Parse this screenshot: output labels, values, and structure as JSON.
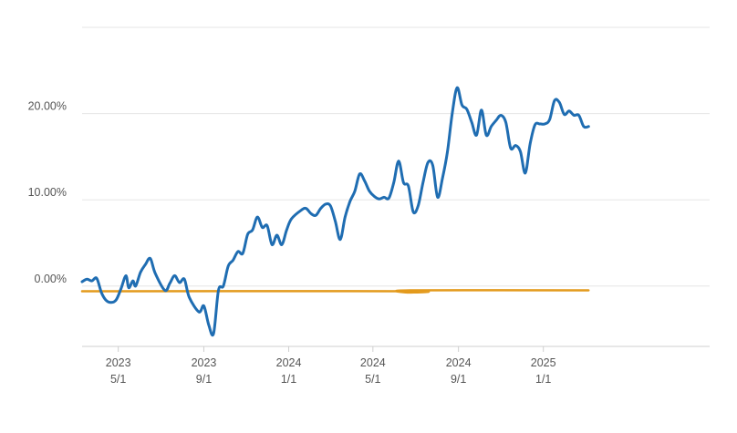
{
  "chart_data": {
    "type": "line",
    "title": "",
    "xlabel": "",
    "ylabel": "",
    "ylim": [
      -7,
      30
    ],
    "grid": true,
    "legend": "none",
    "x_range": [
      "2023-03-10",
      "2025-08-28"
    ],
    "y_ticks": [
      {
        "value": 0,
        "label": "0.00%"
      },
      {
        "value": 10,
        "label": "10.00%"
      },
      {
        "value": 20,
        "label": "20.00%"
      }
    ],
    "x_ticks": [
      {
        "date": "2023-05-01",
        "year": "2023",
        "label": "5/1"
      },
      {
        "date": "2023-09-01",
        "year": "2023",
        "label": "9/1"
      },
      {
        "date": "2024-01-01",
        "year": "2024",
        "label": "1/1"
      },
      {
        "date": "2024-05-01",
        "year": "2024",
        "label": "5/1"
      },
      {
        "date": "2024-09-01",
        "year": "2024",
        "label": "9/1"
      },
      {
        "date": "2025-01-01",
        "year": "2025",
        "label": "1/1"
      }
    ],
    "series": [
      {
        "color": "#1f6db2",
        "points": [
          [
            "2023-03-10",
            0.5
          ],
          [
            "2023-03-17",
            0.8
          ],
          [
            "2023-03-24",
            0.6
          ],
          [
            "2023-03-31",
            0.9
          ],
          [
            "2023-04-07",
            -0.8
          ],
          [
            "2023-04-14",
            -1.7
          ],
          [
            "2023-04-21",
            -1.9
          ],
          [
            "2023-04-28",
            -1.6
          ],
          [
            "2023-05-05",
            -0.3
          ],
          [
            "2023-05-12",
            1.2
          ],
          [
            "2023-05-16",
            -0.2
          ],
          [
            "2023-05-22",
            0.6
          ],
          [
            "2023-05-26",
            0.0
          ],
          [
            "2023-06-02",
            1.6
          ],
          [
            "2023-06-09",
            2.5
          ],
          [
            "2023-06-16",
            3.2
          ],
          [
            "2023-06-23",
            1.5
          ],
          [
            "2023-07-07",
            -0.5
          ],
          [
            "2023-07-14",
            0.3
          ],
          [
            "2023-07-21",
            1.2
          ],
          [
            "2023-07-28",
            0.4
          ],
          [
            "2023-08-04",
            0.8
          ],
          [
            "2023-08-11",
            -1.3
          ],
          [
            "2023-08-25",
            -3.0
          ],
          [
            "2023-09-01",
            -2.3
          ],
          [
            "2023-09-08",
            -4.5
          ],
          [
            "2023-09-15",
            -5.5
          ],
          [
            "2023-09-22",
            -0.5
          ],
          [
            "2023-09-29",
            0.0
          ],
          [
            "2023-10-06",
            2.3
          ],
          [
            "2023-10-13",
            3.0
          ],
          [
            "2023-10-20",
            4.0
          ],
          [
            "2023-10-27",
            3.8
          ],
          [
            "2023-11-03",
            6.0
          ],
          [
            "2023-11-10",
            6.5
          ],
          [
            "2023-11-17",
            8.0
          ],
          [
            "2023-11-24",
            6.8
          ],
          [
            "2023-12-01",
            7.0
          ],
          [
            "2023-12-08",
            4.8
          ],
          [
            "2023-12-15",
            5.9
          ],
          [
            "2023-12-22",
            4.8
          ],
          [
            "2023-12-29",
            6.5
          ],
          [
            "2024-01-05",
            7.8
          ],
          [
            "2024-01-19",
            8.8
          ],
          [
            "2024-01-26",
            9.0
          ],
          [
            "2024-02-02",
            8.4
          ],
          [
            "2024-02-09",
            8.2
          ],
          [
            "2024-02-16",
            9.0
          ],
          [
            "2024-02-23",
            9.5
          ],
          [
            "2024-03-01",
            9.3
          ],
          [
            "2024-03-08",
            7.5
          ],
          [
            "2024-03-15",
            5.4
          ],
          [
            "2024-03-22",
            8.0
          ],
          [
            "2024-03-29",
            9.8
          ],
          [
            "2024-04-05",
            11.0
          ],
          [
            "2024-04-12",
            13.0
          ],
          [
            "2024-04-19",
            12.2
          ],
          [
            "2024-04-26",
            11.0
          ],
          [
            "2024-05-03",
            10.4
          ],
          [
            "2024-05-10",
            10.1
          ],
          [
            "2024-05-17",
            10.3
          ],
          [
            "2024-05-24",
            10.2
          ],
          [
            "2024-05-31",
            12.0
          ],
          [
            "2024-06-07",
            14.5
          ],
          [
            "2024-06-14",
            12.0
          ],
          [
            "2024-06-21",
            11.6
          ],
          [
            "2024-06-28",
            8.6
          ],
          [
            "2024-07-05",
            9.3
          ],
          [
            "2024-07-12",
            12.0
          ],
          [
            "2024-07-19",
            14.3
          ],
          [
            "2024-07-26",
            14.0
          ],
          [
            "2024-08-02",
            10.3
          ],
          [
            "2024-08-09",
            12.5
          ],
          [
            "2024-08-16",
            15.5
          ],
          [
            "2024-08-23",
            20.0
          ],
          [
            "2024-08-30",
            23.0
          ],
          [
            "2024-09-06",
            21.0
          ],
          [
            "2024-09-13",
            20.5
          ],
          [
            "2024-09-20",
            19.0
          ],
          [
            "2024-09-27",
            17.5
          ],
          [
            "2024-10-04",
            20.4
          ],
          [
            "2024-10-11",
            17.5
          ],
          [
            "2024-10-18",
            18.5
          ],
          [
            "2024-10-25",
            19.2
          ],
          [
            "2024-11-01",
            19.8
          ],
          [
            "2024-11-08",
            19.0
          ],
          [
            "2024-11-15",
            16.0
          ],
          [
            "2024-11-22",
            16.3
          ],
          [
            "2024-11-29",
            15.6
          ],
          [
            "2024-12-06",
            13.1
          ],
          [
            "2024-12-13",
            16.5
          ],
          [
            "2024-12-20",
            18.7
          ],
          [
            "2024-12-27",
            18.8
          ],
          [
            "2025-01-03",
            18.8
          ],
          [
            "2025-01-10",
            19.3
          ],
          [
            "2025-01-17",
            21.5
          ],
          [
            "2025-01-24",
            21.3
          ],
          [
            "2025-01-31",
            19.9
          ],
          [
            "2025-02-07",
            20.3
          ],
          [
            "2025-02-14",
            19.8
          ],
          [
            "2025-02-21",
            19.8
          ],
          [
            "2025-02-28",
            18.5
          ],
          [
            "2025-03-07",
            18.5
          ]
        ]
      },
      {
        "color": "#e39a1c",
        "points": [
          [
            "2023-03-10",
            -0.6
          ],
          [
            "2024-06-15",
            -0.6
          ],
          [
            "2024-06-19",
            -0.75
          ],
          [
            "2024-06-23",
            -0.5
          ],
          [
            "2025-03-07",
            -0.5
          ]
        ]
      }
    ]
  }
}
